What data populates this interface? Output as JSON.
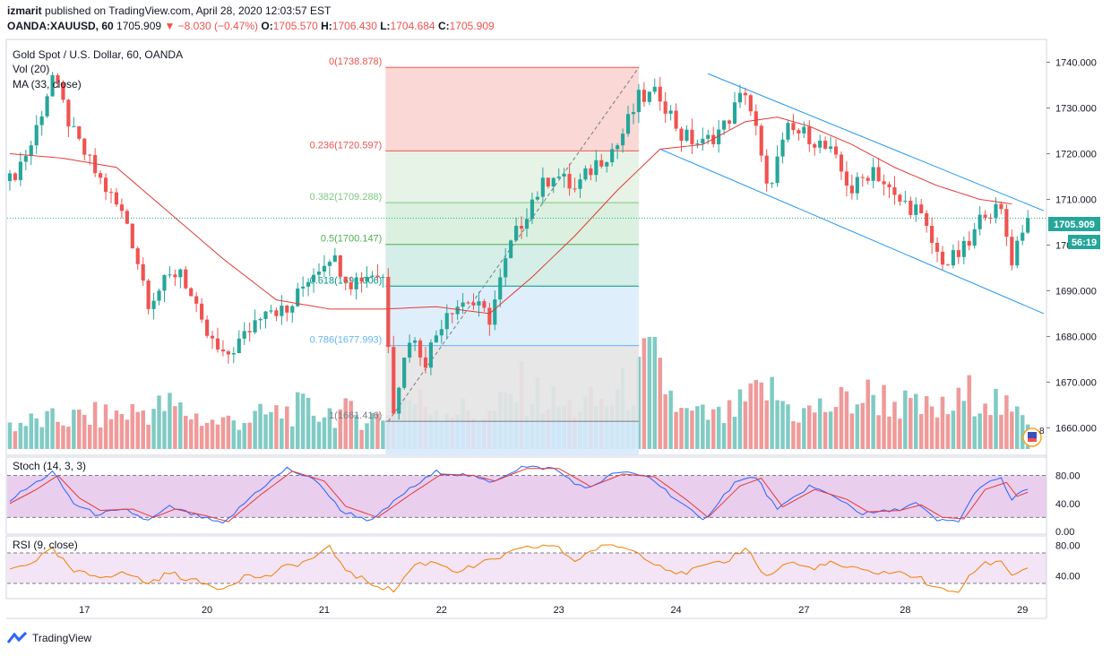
{
  "header": {
    "author": "izmarit",
    "published_text": "published on TradingView.com, April 28, 2020 12:03:57 EST",
    "symbol": "OANDA:XAUUSD, 60",
    "last": "1705.909",
    "change": "▼ −8.030 (−0.47%)",
    "o_label": "O:",
    "o": "1705.570",
    "h_label": "H:",
    "h": "1706.430",
    "l_label": "L:",
    "l": "1704.684",
    "c_label": "C:",
    "c": "1705.909"
  },
  "legend": {
    "title": "Gold Spot / U.S. Dollar, 60, OANDA",
    "vol": "Vol (20)",
    "ma": "MA (33, close)",
    "stoch": "Stoch (14, 3, 3)",
    "rsi": "RSI (9, close)"
  },
  "footer": {
    "brand": "TradingView"
  },
  "badges": {
    "price": "1705.909",
    "countdown": "56:19",
    "events": "8"
  },
  "colors": {
    "up": "#26a69a",
    "down": "#ef5350",
    "ma": "#e53935",
    "channel": "#2196f3",
    "stoch_k": "#2962ff",
    "stoch_d": "#e53935",
    "rsi": "#f57c00",
    "stoch_bg": "#e1bee7",
    "rsi_bg": "#f3e5f5"
  },
  "chart_data": {
    "type": "candlestick",
    "title": "Gold Spot / U.S. Dollar, 60, OANDA",
    "ylim": [
      1654,
      1745
    ],
    "y_ticks": [
      "1740.000",
      "1730.000",
      "1720.000",
      "1710.000",
      "1700.000",
      "1690.000",
      "1680.000",
      "1670.000",
      "1660.000"
    ],
    "x_ticks": [
      {
        "label": "17",
        "i": 14
      },
      {
        "label": "20",
        "i": 37
      },
      {
        "label": "21",
        "i": 59
      },
      {
        "label": "22",
        "i": 81
      },
      {
        "label": "23",
        "i": 103
      },
      {
        "label": "24",
        "i": 125
      },
      {
        "label": "27",
        "i": 149
      },
      {
        "label": "28",
        "i": 168
      },
      {
        "label": "29",
        "i": 190
      }
    ],
    "price_path": [
      [
        0,
        1714
      ],
      [
        4,
        1722
      ],
      [
        8,
        1737
      ],
      [
        12,
        1724
      ],
      [
        16,
        1716
      ],
      [
        22,
        1705
      ],
      [
        26,
        1688
      ],
      [
        32,
        1695
      ],
      [
        36,
        1682
      ],
      [
        40,
        1675
      ],
      [
        44,
        1680
      ],
      [
        48,
        1687
      ],
      [
        52,
        1685
      ],
      [
        56,
        1693
      ],
      [
        60,
        1698
      ],
      [
        64,
        1692
      ],
      [
        68,
        1694
      ],
      [
        70,
        1693
      ],
      [
        72,
        1665
      ],
      [
        75,
        1680
      ],
      [
        78,
        1675
      ],
      [
        82,
        1686
      ],
      [
        86,
        1688
      ],
      [
        90,
        1684
      ],
      [
        94,
        1700
      ],
      [
        98,
        1710
      ],
      [
        102,
        1716
      ],
      [
        106,
        1712
      ],
      [
        110,
        1718
      ],
      [
        114,
        1722
      ],
      [
        118,
        1732
      ],
      [
        122,
        1733
      ],
      [
        126,
        1724
      ],
      [
        130,
        1722
      ],
      [
        134,
        1726
      ],
      [
        138,
        1734
      ],
      [
        140,
        1725
      ],
      [
        142,
        1712
      ],
      [
        146,
        1725
      ],
      [
        150,
        1724
      ],
      [
        154,
        1720
      ],
      [
        158,
        1712
      ],
      [
        162,
        1717
      ],
      [
        166,
        1710
      ],
      [
        170,
        1708
      ],
      [
        174,
        1698
      ],
      [
        176,
        1696
      ],
      [
        180,
        1700
      ],
      [
        183,
        1708
      ],
      [
        186,
        1707
      ],
      [
        188,
        1697
      ],
      [
        190,
        1704
      ],
      [
        191,
        1705.9
      ]
    ],
    "ma33_path": [
      [
        0,
        1720
      ],
      [
        10,
        1719
      ],
      [
        20,
        1717
      ],
      [
        30,
        1707
      ],
      [
        40,
        1697
      ],
      [
        50,
        1688
      ],
      [
        60,
        1686
      ],
      [
        70,
        1686
      ],
      [
        80,
        1686.5
      ],
      [
        90,
        1685
      ],
      [
        98,
        1693
      ],
      [
        106,
        1702
      ],
      [
        114,
        1712
      ],
      [
        122,
        1721
      ],
      [
        130,
        1722
      ],
      [
        138,
        1727
      ],
      [
        144,
        1728
      ],
      [
        150,
        1726
      ],
      [
        158,
        1722
      ],
      [
        166,
        1717
      ],
      [
        174,
        1713
      ],
      [
        182,
        1710
      ],
      [
        188,
        1709
      ]
    ],
    "volume_path": [
      [
        0,
        150
      ],
      [
        10,
        180
      ],
      [
        20,
        210
      ],
      [
        30,
        260
      ],
      [
        38,
        160
      ],
      [
        46,
        190
      ],
      [
        54,
        240
      ],
      [
        62,
        220
      ],
      [
        70,
        190
      ],
      [
        72,
        330
      ],
      [
        76,
        290
      ],
      [
        82,
        250
      ],
      [
        90,
        200
      ],
      [
        96,
        370
      ],
      [
        104,
        250
      ],
      [
        112,
        280
      ],
      [
        118,
        420
      ],
      [
        120,
        560
      ],
      [
        126,
        210
      ],
      [
        134,
        190
      ],
      [
        142,
        360
      ],
      [
        148,
        210
      ],
      [
        156,
        280
      ],
      [
        162,
        330
      ],
      [
        170,
        240
      ],
      [
        176,
        230
      ],
      [
        182,
        370
      ],
      [
        188,
        200
      ]
    ],
    "stoch_k_path": [
      [
        0,
        45
      ],
      [
        4,
        65
      ],
      [
        8,
        85
      ],
      [
        12,
        40
      ],
      [
        16,
        25
      ],
      [
        22,
        30
      ],
      [
        26,
        15
      ],
      [
        30,
        35
      ],
      [
        36,
        20
      ],
      [
        40,
        10
      ],
      [
        46,
        55
      ],
      [
        52,
        90
      ],
      [
        58,
        70
      ],
      [
        62,
        30
      ],
      [
        68,
        15
      ],
      [
        74,
        55
      ],
      [
        80,
        85
      ],
      [
        86,
        80
      ],
      [
        90,
        70
      ],
      [
        96,
        92
      ],
      [
        102,
        90
      ],
      [
        108,
        60
      ],
      [
        114,
        85
      ],
      [
        120,
        78
      ],
      [
        126,
        40
      ],
      [
        130,
        15
      ],
      [
        136,
        70
      ],
      [
        140,
        78
      ],
      [
        144,
        30
      ],
      [
        150,
        65
      ],
      [
        156,
        45
      ],
      [
        160,
        25
      ],
      [
        166,
        30
      ],
      [
        170,
        40
      ],
      [
        174,
        15
      ],
      [
        178,
        15
      ],
      [
        182,
        65
      ],
      [
        186,
        75
      ],
      [
        188,
        45
      ],
      [
        191,
        62
      ]
    ],
    "stoch_d_path": [
      [
        0,
        40
      ],
      [
        5,
        60
      ],
      [
        9,
        80
      ],
      [
        13,
        48
      ],
      [
        17,
        30
      ],
      [
        23,
        32
      ],
      [
        27,
        20
      ],
      [
        31,
        32
      ],
      [
        37,
        22
      ],
      [
        41,
        14
      ],
      [
        47,
        52
      ],
      [
        53,
        86
      ],
      [
        59,
        72
      ],
      [
        63,
        36
      ],
      [
        69,
        20
      ],
      [
        75,
        52
      ],
      [
        81,
        82
      ],
      [
        87,
        80
      ],
      [
        91,
        72
      ],
      [
        97,
        90
      ],
      [
        103,
        90
      ],
      [
        109,
        64
      ],
      [
        115,
        82
      ],
      [
        121,
        78
      ],
      [
        127,
        45
      ],
      [
        131,
        20
      ],
      [
        137,
        65
      ],
      [
        141,
        76
      ],
      [
        145,
        35
      ],
      [
        151,
        60
      ],
      [
        157,
        46
      ],
      [
        161,
        28
      ],
      [
        167,
        30
      ],
      [
        171,
        38
      ],
      [
        175,
        20
      ],
      [
        179,
        18
      ],
      [
        183,
        60
      ],
      [
        187,
        70
      ],
      [
        189,
        50
      ],
      [
        191,
        56
      ]
    ],
    "rsi_path": [
      [
        0,
        48
      ],
      [
        4,
        58
      ],
      [
        8,
        74
      ],
      [
        12,
        45
      ],
      [
        16,
        40
      ],
      [
        22,
        43
      ],
      [
        26,
        30
      ],
      [
        30,
        44
      ],
      [
        36,
        30
      ],
      [
        40,
        24
      ],
      [
        44,
        40
      ],
      [
        48,
        38
      ],
      [
        52,
        52
      ],
      [
        56,
        60
      ],
      [
        60,
        76
      ],
      [
        64,
        42
      ],
      [
        68,
        30
      ],
      [
        72,
        20
      ],
      [
        76,
        55
      ],
      [
        80,
        58
      ],
      [
        84,
        46
      ],
      [
        88,
        54
      ],
      [
        94,
        70
      ],
      [
        98,
        78
      ],
      [
        102,
        80
      ],
      [
        106,
        60
      ],
      [
        110,
        76
      ],
      [
        114,
        80
      ],
      [
        118,
        70
      ],
      [
        122,
        54
      ],
      [
        126,
        42
      ],
      [
        130,
        52
      ],
      [
        134,
        56
      ],
      [
        138,
        78
      ],
      [
        142,
        38
      ],
      [
        146,
        58
      ],
      [
        150,
        50
      ],
      [
        154,
        56
      ],
      [
        160,
        46
      ],
      [
        166,
        44
      ],
      [
        170,
        40
      ],
      [
        174,
        22
      ],
      [
        178,
        20
      ],
      [
        182,
        54
      ],
      [
        186,
        60
      ],
      [
        188,
        42
      ],
      [
        191,
        50
      ]
    ],
    "channel": {
      "upper": [
        [
          131,
          1737.5
        ],
        [
          194,
          1707.5
        ]
      ],
      "lower": [
        [
          122,
          1721
        ],
        [
          194,
          1685
        ]
      ]
    },
    "fibonacci": {
      "i_start": 71,
      "i_end": 118,
      "trend": [
        [
          71,
          1661.416
        ],
        [
          118,
          1738.878
        ]
      ],
      "levels": [
        {
          "ratio": "0",
          "price": 1738.878,
          "label": "0(1738.878)",
          "color": "#ef5350"
        },
        {
          "ratio": "0.236",
          "price": 1720.597,
          "label": "0.236(1720.597)",
          "color": "#ef5350"
        },
        {
          "ratio": "0.382",
          "price": 1709.288,
          "label": "0.382(1709.288)",
          "color": "#81c784"
        },
        {
          "ratio": "0.5",
          "price": 1700.147,
          "label": "0.5(1700.147)",
          "color": "#4caf50"
        },
        {
          "ratio": "0.618",
          "price": 1691.006,
          "label": "0.618(1691.006)",
          "color": "#009688"
        },
        {
          "ratio": "0.786",
          "price": 1677.993,
          "label": "0.786(1677.993)",
          "color": "#64b5f6"
        },
        {
          "ratio": "1",
          "price": 1661.416,
          "label": "1(1661.416)",
          "color": "#787b86"
        }
      ]
    },
    "stoch_ticks": [
      "80.00",
      "40.00",
      "0.00"
    ],
    "rsi_ticks": [
      "80.00",
      "40.00"
    ]
  }
}
